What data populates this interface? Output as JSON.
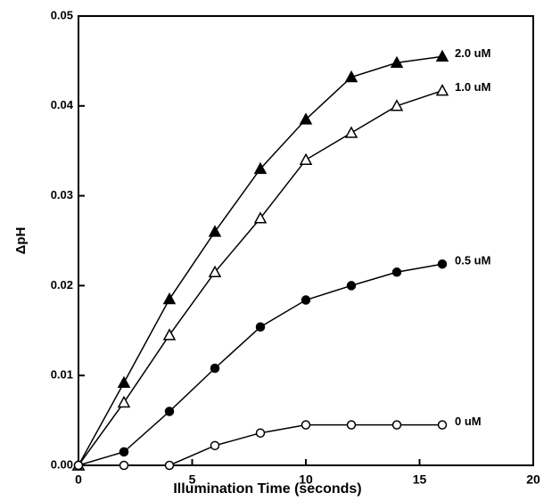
{
  "chart_data": {
    "type": "line",
    "x_label": "Illumination Time (seconds)",
    "y_label": "ΔpH",
    "x": [
      0,
      2,
      4,
      6,
      8,
      10,
      12,
      14,
      16
    ],
    "series": [
      {
        "name": "2.0 uM",
        "color": "#000000",
        "marker": "triangle",
        "filled": true,
        "values": [
          0,
          0.0092,
          0.0185,
          0.026,
          0.033,
          0.0385,
          0.0432,
          0.0448,
          0.0455
        ]
      },
      {
        "name": "1.0 uM",
        "color": "#000000",
        "marker": "triangle",
        "filled": false,
        "values": [
          0,
          0.007,
          0.0145,
          0.0215,
          0.0275,
          0.034,
          0.037,
          0.04,
          0.0417
        ]
      },
      {
        "name": "0.5 uM",
        "color": "#000000",
        "marker": "circle",
        "filled": true,
        "values": [
          0,
          0.0015,
          0.006,
          0.0108,
          0.0154,
          0.0184,
          0.02,
          0.0215,
          0.0224
        ]
      },
      {
        "name": "0 uM",
        "color": "#000000",
        "marker": "circle",
        "filled": false,
        "values": [
          0,
          0,
          0,
          0.0022,
          0.0036,
          0.0045,
          0.0045,
          0.0045,
          0.0045
        ]
      }
    ],
    "xlim": [
      0,
      20
    ],
    "xticks": [
      0,
      5,
      10,
      15,
      20
    ],
    "ylim": [
      0,
      0.05
    ],
    "yticks": [
      {
        "value": 0,
        "label": "0.00"
      },
      {
        "value": 0.01,
        "label": "0.01"
      },
      {
        "value": 0.02,
        "label": "0.02"
      },
      {
        "value": 0.03,
        "label": "0.03"
      },
      {
        "value": 0.04,
        "label": "0.04"
      },
      {
        "value": 0.05,
        "label": "0.05"
      }
    ],
    "grid": false
  }
}
